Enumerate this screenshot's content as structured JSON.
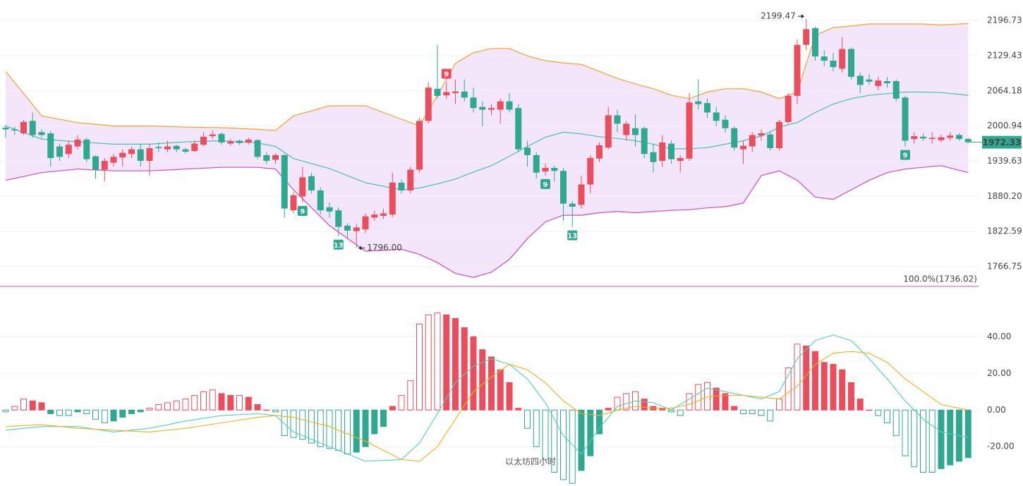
{
  "chart_data": [
    {
      "type": "candlestick",
      "log_scale": true,
      "grid": true,
      "ylim": [
        1735,
        2237
      ],
      "yticks": [
        2196.73,
        2129.43,
        2064.18,
        2000.94,
        1939.63,
        {
          "value": 1880.2,
          "label": "1880.20"
        },
        1822.59,
        1766.75
      ],
      "up_color": "#eb4d5c",
      "down_color": "#2ea88f",
      "open": [
        1998,
        1995,
        1988,
        2010,
        1990,
        1988,
        1965,
        1952,
        1965,
        1977,
        1948,
        1925,
        1937,
        1946,
        1952,
        1960,
        1940,
        1964,
        1960,
        1966,
        1960,
        1957,
        1968,
        1983,
        1987,
        1970,
        1975,
        1972,
        1976,
        1950,
        1942,
        1950,
        1857,
        1880,
        1914,
        1890,
        1862,
        1857,
        1832,
        1823,
        1826,
        1845,
        1848,
        1850,
        1903,
        1890,
        1925,
        2010,
        2068,
        2056,
        2060,
        2063,
        2052,
        2035,
        2030,
        2030,
        2045,
        2033,
        1963,
        1950,
        1922,
        1928,
        1923,
        1868,
        1866,
        1900,
        1944,
        1963,
        2020,
        1985,
        1997,
        1997,
        1955,
        1940,
        1970,
        1940,
        1944,
        2045,
        2042,
        2025,
        2012,
        1997,
        1960,
        1965,
        1984,
        1986,
        1962,
        2008,
        2055,
        2150,
        2182,
        2128,
        2120,
        2105,
        2142,
        2092,
        2085,
        2073,
        2082,
        2082,
        2052,
        1978,
        1982,
        1978,
        1976,
        1980,
        1985,
        1978
      ],
      "high": [
        2003,
        2000,
        2012,
        2025,
        1995,
        1992,
        1970,
        1975,
        1985,
        1980,
        1950,
        1945,
        1952,
        1960,
        1965,
        1970,
        1970,
        1972,
        1975,
        1968,
        1963,
        1975,
        1990,
        1993,
        1990,
        1978,
        1977,
        1980,
        1978,
        1955,
        1953,
        1952,
        1888,
        1930,
        1920,
        1895,
        1870,
        1862,
        1836,
        1835,
        1852,
        1856,
        1860,
        1920,
        1908,
        1930,
        2015,
        2080,
        2150,
        2080,
        2085,
        2085,
        2070,
        2045,
        2040,
        2050,
        2060,
        2040,
        1975,
        1955,
        1935,
        1932,
        1928,
        1872,
        1915,
        1950,
        1972,
        2035,
        2030,
        2010,
        2022,
        2000,
        1970,
        1985,
        1975,
        1950,
        2060,
        2085,
        2050,
        2035,
        2020,
        2000,
        1975,
        1990,
        1995,
        1990,
        2012,
        2060,
        2160,
        2199.47,
        2185,
        2140,
        2135,
        2165,
        2145,
        2098,
        2095,
        2090,
        2090,
        2085,
        2055,
        1990,
        1988,
        1990,
        1986,
        1990,
        1988,
        1980
      ],
      "low": [
        1980,
        1985,
        1985,
        1980,
        1980,
        1930,
        1940,
        1945,
        1960,
        1938,
        1910,
        1905,
        1930,
        1930,
        1945,
        1930,
        1915,
        1955,
        1955,
        1955,
        1953,
        1955,
        1965,
        1978,
        1968,
        1966,
        1968,
        1968,
        1943,
        1935,
        1935,
        1845,
        1852,
        1870,
        1885,
        1850,
        1845,
        1815,
        1812,
        1796,
        1820,
        1840,
        1843,
        1846,
        1885,
        1885,
        1920,
        2005,
        2050,
        2050,
        2040,
        2045,
        2025,
        2000,
        2020,
        2005,
        2025,
        1955,
        1930,
        1910,
        1915,
        1905,
        1840,
        1830,
        1860,
        1885,
        1938,
        1960,
        1990,
        1975,
        1965,
        1945,
        1920,
        1930,
        1935,
        1920,
        1940,
        2030,
        2015,
        2000,
        1990,
        1958,
        1935,
        1955,
        1975,
        1958,
        1958,
        2005,
        2040,
        2140,
        2120,
        2110,
        2100,
        2098,
        2085,
        2060,
        2075,
        2065,
        2070,
        2045,
        1965,
        1970,
        1975,
        1970,
        1972,
        1975,
        1975,
        1970
      ],
      "close": [
        1995,
        1993,
        2008,
        1985,
        1985,
        1945,
        1947,
        1968,
        1977,
        1943,
        1925,
        1940,
        1947,
        1954,
        1960,
        1940,
        1962,
        1962,
        1965,
        1960,
        1956,
        1970,
        1982,
        1986,
        1972,
        1974,
        1971,
        1977,
        1947,
        1940,
        1950,
        1860,
        1882,
        1912,
        1890,
        1857,
        1855,
        1830,
        1824,
        1829,
        1847,
        1850,
        1852,
        1903,
        1890,
        1925,
        2010,
        2070,
        2055,
        2062,
        2063,
        2052,
        2033,
        2030,
        2033,
        2045,
        2030,
        1960,
        1950,
        1920,
        1928,
        1923,
        1868,
        1863,
        1900,
        1945,
        1967,
        2020,
        2005,
        2005,
        1985,
        1952,
        1938,
        1972,
        1943,
        1945,
        2043,
        2040,
        2025,
        2010,
        1997,
        1963,
        1966,
        1985,
        1988,
        1962,
        2008,
        2055,
        2150,
        2180,
        2128,
        2120,
        2108,
        2142,
        2090,
        2075,
        2081,
        2083,
        2078,
        2050,
        1975,
        1983,
        1979,
        1980,
        1981,
        1984,
        1978,
        1972.33
      ],
      "bollinger": {
        "index": [
          0,
          4,
          8,
          12,
          16,
          20,
          24,
          28,
          30,
          32,
          36,
          40,
          44,
          46,
          48,
          50,
          52,
          54,
          56,
          58,
          60,
          62,
          64,
          66,
          68,
          70,
          72,
          74,
          76,
          78,
          80,
          82,
          84,
          86,
          88,
          90,
          92,
          94,
          96,
          98,
          100,
          102,
          104,
          107
        ],
        "upper": [
          2100,
          2019,
          2007,
          2001,
          2001,
          1999,
          1998,
          1995,
          1993,
          2019,
          2037,
          2037,
          2013,
          2001,
          2056,
          2115,
          2135,
          2143,
          2143,
          2129,
          2120,
          2116,
          2113,
          2100,
          2087,
          2077,
          2068,
          2056,
          2050,
          2062,
          2068,
          2068,
          2062,
          2050,
          2062,
          2168,
          2183,
          2186,
          2190,
          2190,
          2190,
          2190,
          2188,
          2191
        ],
        "mid": [
          2001,
          1978,
          1973,
          1969,
          1969,
          1973,
          1975,
          1971,
          1965,
          1944,
          1927,
          1903,
          1891,
          1894,
          1901,
          1909,
          1921,
          1932,
          1948,
          1965,
          1981,
          1990,
          1987,
          1982,
          1979,
          1975,
          1969,
          1961,
          1961,
          1963,
          1969,
          1975,
          1983,
          1999,
          2007,
          2025,
          2040,
          2050,
          2056,
          2059,
          2062,
          2062,
          2061,
          2056
        ],
        "lower": [
          1907,
          1920,
          1926,
          1923,
          1923,
          1926,
          1929,
          1929,
          1926,
          1891,
          1832,
          1791,
          1794,
          1786,
          1773,
          1756,
          1750,
          1758,
          1778,
          1811,
          1838,
          1849,
          1849,
          1853,
          1855,
          1853,
          1855,
          1857,
          1858,
          1861,
          1863,
          1869,
          1915,
          1923,
          1907,
          1879,
          1875,
          1891,
          1907,
          1920,
          1926,
          1929,
          1932,
          1920
        ],
        "upper_color": "#f5a030",
        "mid_color": "#46bfb3",
        "lower_color": "#c94ec0",
        "fill_color": "#f4e6fa"
      },
      "signals": [
        {
          "index": 33,
          "label": 9,
          "side": "below"
        },
        {
          "index": 37,
          "label": 13,
          "side": "below"
        },
        {
          "index": 49,
          "label": 9,
          "side": "above"
        },
        {
          "index": 60,
          "label": 9,
          "side": "below"
        },
        {
          "index": 63,
          "label": 13,
          "side": "below"
        },
        {
          "index": 100,
          "label": 9,
          "side": "below"
        }
      ],
      "annotations": [
        {
          "index": 89,
          "field": "high",
          "label": "2199.47"
        },
        {
          "index": 39,
          "field": "low",
          "label": "1796.00"
        }
      ],
      "base_line": {
        "value": 1736.02,
        "label": "100.0%(1736.02)",
        "color": "#d24fb5"
      }
    },
    {
      "type": "macd",
      "ylim": [
        -41.5,
        66
      ],
      "yticks": [
        {
          "value": 40,
          "label": "40.00"
        },
        {
          "value": 20,
          "label": "20.00"
        },
        {
          "value": 0,
          "label": "0.00"
        },
        {
          "value": -20,
          "label": "-20.00"
        }
      ],
      "up_color": "#eb4d5c",
      "down_color": "#2ea88f",
      "histogram": [
        -1,
        2,
        6,
        5,
        4,
        -2,
        -3,
        -3,
        -1,
        -2,
        -5,
        -7,
        -6,
        -4,
        -2,
        -1,
        1,
        3,
        4,
        5,
        6,
        8,
        10,
        11,
        9,
        8,
        8,
        7,
        3,
        0,
        -1,
        -14,
        -15,
        -16,
        -18,
        -20,
        -21,
        -22,
        -24,
        -23,
        -20,
        -13,
        -9,
        2,
        8,
        16,
        47,
        52,
        53,
        52,
        50,
        45,
        40,
        33,
        29,
        22,
        15,
        1,
        -10,
        -20,
        -27,
        -34,
        -38,
        -40,
        -33,
        -25,
        -13,
        1,
        7,
        9,
        10,
        6,
        2,
        1,
        -1,
        -3,
        9,
        14,
        15,
        12,
        9,
        2,
        -2,
        -2,
        -3,
        -6,
        6,
        23,
        36,
        35,
        32,
        26,
        25,
        22,
        15,
        6,
        0,
        -3,
        -7,
        -14,
        -25,
        -31,
        -34,
        -34,
        -32,
        -30,
        -28,
        -26
      ],
      "dif": {
        "index": [
          0,
          4,
          8,
          12,
          16,
          20,
          24,
          28,
          30,
          32,
          36,
          40,
          44,
          46,
          48,
          50,
          52,
          54,
          56,
          58,
          60,
          62,
          64,
          66,
          68,
          70,
          72,
          74,
          76,
          78,
          80,
          82,
          84,
          86,
          88,
          90,
          92,
          94,
          96,
          98,
          100,
          102,
          104,
          107
        ],
        "values": [
          -11,
          -9,
          -9,
          -12,
          -10,
          -6,
          -3,
          -2,
          -3,
          -12,
          -20,
          -28,
          -27,
          -18,
          -2,
          15,
          24,
          28,
          25,
          17,
          4,
          -14,
          -24,
          -10,
          2,
          5,
          4,
          0,
          6,
          12,
          10,
          8,
          6,
          10,
          28,
          38,
          41,
          38,
          28,
          17,
          5,
          -5,
          -12,
          -15
        ],
        "color": "#4fcfbd"
      },
      "dea": {
        "index": [
          0,
          4,
          8,
          12,
          16,
          20,
          24,
          28,
          30,
          32,
          36,
          40,
          44,
          46,
          48,
          50,
          52,
          54,
          56,
          58,
          60,
          62,
          64,
          66,
          68,
          70,
          72,
          74,
          76,
          78,
          80,
          82,
          84,
          86,
          88,
          90,
          92,
          94,
          96,
          98,
          100,
          102,
          104,
          107
        ],
        "values": [
          -9,
          -8,
          -10,
          -11,
          -12,
          -10,
          -7,
          -4,
          -3,
          -4,
          -9,
          -17,
          -27,
          -28,
          -20,
          -5,
          10,
          18,
          25,
          22,
          15,
          5,
          -2,
          -3,
          0,
          2,
          1,
          1,
          3,
          7,
          8,
          8,
          7,
          6,
          13,
          25,
          31,
          32,
          31,
          26,
          17,
          10,
          3,
          0
        ],
        "color": "#f0b020"
      },
      "watermark": {
        "text": "以太坊四小时",
        "color": "#e8463f"
      }
    }
  ]
}
